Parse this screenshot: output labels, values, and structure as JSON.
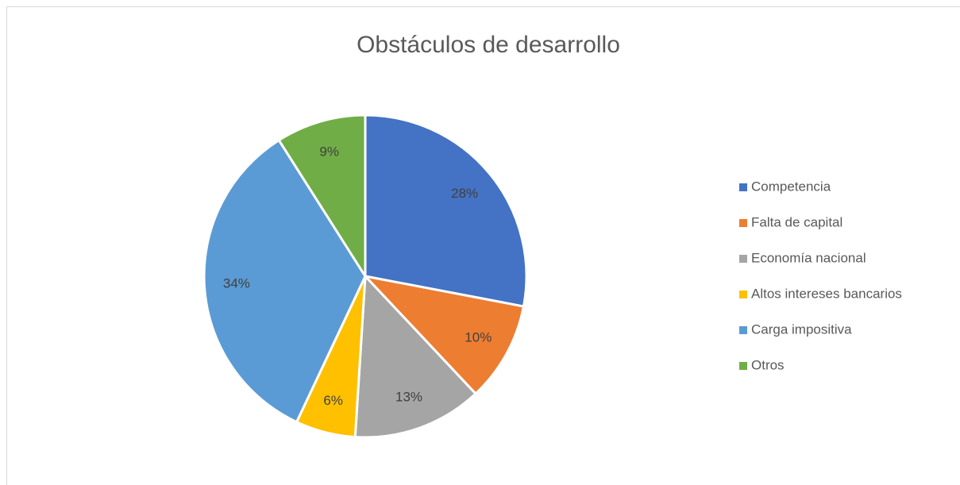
{
  "chart_data": {
    "type": "pie",
    "title": "Obstáculos de desarrollo",
    "categories": [
      "Competencia",
      "Falta de capital",
      "Economía nacional",
      "Altos intereses bancarios",
      "Carga impositiva",
      "Otros"
    ],
    "values": [
      28,
      10,
      13,
      6,
      34,
      9
    ],
    "value_labels": [
      "28%",
      "10%",
      "13%",
      "6%",
      "34%",
      "9%"
    ],
    "colors": [
      "#4472c4",
      "#ed7d31",
      "#a5a5a5",
      "#ffc000",
      "#5b9bd5",
      "#70ad47"
    ],
    "legend": "right"
  }
}
